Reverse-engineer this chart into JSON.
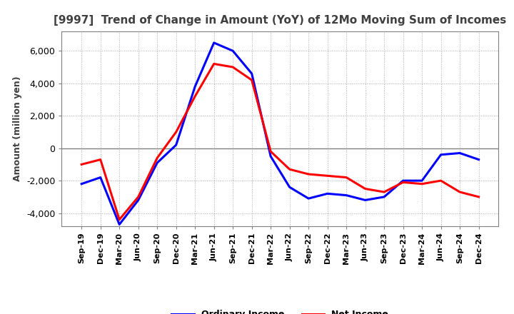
{
  "title": "[9997]  Trend of Change in Amount (YoY) of 12Mo Moving Sum of Incomes",
  "ylabel": "Amount (million yen)",
  "ylim": [
    -4800,
    7200
  ],
  "yticks": [
    -4000,
    -2000,
    0,
    2000,
    4000,
    6000
  ],
  "x_labels": [
    "Sep-19",
    "Dec-19",
    "Mar-20",
    "Jun-20",
    "Sep-20",
    "Dec-20",
    "Mar-21",
    "Jun-21",
    "Sep-21",
    "Dec-21",
    "Mar-22",
    "Jun-22",
    "Sep-22",
    "Dec-22",
    "Mar-23",
    "Jun-23",
    "Sep-23",
    "Dec-23",
    "Mar-24",
    "Jun-24",
    "Sep-24",
    "Dec-24"
  ],
  "ordinary_income": [
    -2200,
    -1800,
    -4700,
    -3200,
    -900,
    200,
    3800,
    6500,
    6000,
    4600,
    -500,
    -2400,
    -3100,
    -2800,
    -2900,
    -3200,
    -3000,
    -2000,
    -2000,
    -400,
    -300,
    -700
  ],
  "net_income": [
    -1000,
    -700,
    -4400,
    -3000,
    -600,
    1000,
    3200,
    5200,
    5000,
    4200,
    -200,
    -1300,
    -1600,
    -1700,
    -1800,
    -2500,
    -2700,
    -2100,
    -2200,
    -2000,
    -2700,
    -3000
  ],
  "ordinary_income_color": "#0000ff",
  "net_income_color": "#ff0000",
  "background_color": "#ffffff",
  "grid_color": "#aaaaaa",
  "title_color": "#404040",
  "line_width": 2.2,
  "zero_line_color": "#808080",
  "border_color": "#808080"
}
